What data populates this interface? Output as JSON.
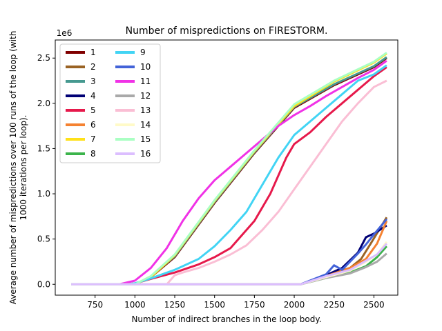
{
  "chart_data": {
    "type": "line",
    "title": "Number of mispredictions on FIRESTORM.",
    "xlabel": "Number of indirect branches in the loop body.",
    "ylabel_line1": "Average number of mispredictions over 100 runs of the loop (with",
    "ylabel_line2": "1000 iterations per loop).",
    "y_multiplier_label": "1e6",
    "xlim": [
      500,
      2650
    ],
    "ylim": [
      -120000,
      2700000
    ],
    "xticks": [
      750,
      1000,
      1250,
      1500,
      1750,
      2000,
      2250,
      2500
    ],
    "yticks": [
      0,
      500000,
      1000000,
      1500000,
      2000000,
      2500000
    ],
    "ytick_labels": [
      "0.0",
      "0.5",
      "1.0",
      "1.5",
      "2.0",
      "2.5"
    ],
    "grid": false,
    "legend_position": "top-left",
    "series": [
      {
        "name": "1",
        "color": "#800000",
        "points": [
          [
            600,
            0
          ],
          [
            1000,
            0
          ],
          [
            1100,
            80000
          ],
          [
            1250,
            300000
          ],
          [
            1500,
            900000
          ],
          [
            1750,
            1450000
          ],
          [
            2000,
            1950000
          ],
          [
            2250,
            2200000
          ],
          [
            2500,
            2400000
          ],
          [
            2580,
            2500000
          ]
        ]
      },
      {
        "name": "2",
        "color": "#9a6324",
        "points": [
          [
            600,
            0
          ],
          [
            2040,
            0
          ],
          [
            2200,
            100000
          ],
          [
            2350,
            180000
          ],
          [
            2420,
            280000
          ],
          [
            2480,
            450000
          ],
          [
            2580,
            740000
          ]
        ]
      },
      {
        "name": "3",
        "color": "#469990",
        "points": [
          [
            600,
            0
          ],
          [
            1000,
            0
          ],
          [
            1100,
            85000
          ],
          [
            1250,
            310000
          ],
          [
            1500,
            910000
          ],
          [
            1750,
            1460000
          ],
          [
            2000,
            1960000
          ],
          [
            2250,
            2210000
          ],
          [
            2500,
            2410000
          ],
          [
            2580,
            2510000
          ]
        ]
      },
      {
        "name": "4",
        "color": "#000075",
        "points": [
          [
            600,
            0
          ],
          [
            2040,
            0
          ],
          [
            2200,
            100000
          ],
          [
            2300,
            180000
          ],
          [
            2400,
            350000
          ],
          [
            2450,
            520000
          ],
          [
            2500,
            560000
          ],
          [
            2580,
            650000
          ]
        ]
      },
      {
        "name": "5",
        "color": "#e6194b",
        "points": [
          [
            600,
            0
          ],
          [
            950,
            0
          ],
          [
            1000,
            10000
          ],
          [
            1100,
            60000
          ],
          [
            1250,
            130000
          ],
          [
            1400,
            220000
          ],
          [
            1500,
            300000
          ],
          [
            1600,
            400000
          ],
          [
            1750,
            700000
          ],
          [
            1850,
            1000000
          ],
          [
            1950,
            1400000
          ],
          [
            2000,
            1550000
          ],
          [
            2100,
            1680000
          ],
          [
            2200,
            1850000
          ],
          [
            2300,
            2000000
          ],
          [
            2400,
            2150000
          ],
          [
            2500,
            2300000
          ],
          [
            2580,
            2400000
          ]
        ]
      },
      {
        "name": "6",
        "color": "#f58231",
        "points": [
          [
            600,
            0
          ],
          [
            2040,
            0
          ],
          [
            2200,
            90000
          ],
          [
            2350,
            180000
          ],
          [
            2450,
            280000
          ],
          [
            2520,
            450000
          ],
          [
            2580,
            700000
          ]
        ]
      },
      {
        "name": "7",
        "color": "#ffe119",
        "points": [
          [
            600,
            0
          ],
          [
            1000,
            0
          ],
          [
            1100,
            80000
          ],
          [
            1250,
            320000
          ],
          [
            1500,
            920000
          ],
          [
            1750,
            1470000
          ],
          [
            2000,
            1970000
          ],
          [
            2250,
            2240000
          ],
          [
            2500,
            2450000
          ],
          [
            2580,
            2550000
          ]
        ]
      },
      {
        "name": "8",
        "color": "#3cb44b",
        "points": [
          [
            600,
            0
          ],
          [
            2040,
            0
          ],
          [
            2200,
            70000
          ],
          [
            2350,
            130000
          ],
          [
            2450,
            200000
          ],
          [
            2520,
            300000
          ],
          [
            2580,
            420000
          ]
        ]
      },
      {
        "name": "9",
        "color": "#42d4f4",
        "points": [
          [
            600,
            0
          ],
          [
            950,
            0
          ],
          [
            1000,
            10000
          ],
          [
            1100,
            65000
          ],
          [
            1250,
            160000
          ],
          [
            1400,
            280000
          ],
          [
            1500,
            420000
          ],
          [
            1600,
            600000
          ],
          [
            1700,
            800000
          ],
          [
            1800,
            1100000
          ],
          [
            1900,
            1400000
          ],
          [
            2000,
            1650000
          ],
          [
            2100,
            1800000
          ],
          [
            2200,
            1950000
          ],
          [
            2300,
            2100000
          ],
          [
            2400,
            2250000
          ],
          [
            2500,
            2320000
          ],
          [
            2580,
            2420000
          ]
        ]
      },
      {
        "name": "10",
        "color": "#4363d8",
        "points": [
          [
            600,
            0
          ],
          [
            2040,
            0
          ],
          [
            2200,
            110000
          ],
          [
            2250,
            210000
          ],
          [
            2300,
            160000
          ],
          [
            2400,
            340000
          ],
          [
            2450,
            440000
          ],
          [
            2500,
            550000
          ],
          [
            2580,
            720000
          ]
        ]
      },
      {
        "name": "11",
        "color": "#f032e6",
        "points": [
          [
            600,
            0
          ],
          [
            900,
            0
          ],
          [
            1000,
            40000
          ],
          [
            1100,
            180000
          ],
          [
            1200,
            400000
          ],
          [
            1300,
            700000
          ],
          [
            1400,
            950000
          ],
          [
            1500,
            1150000
          ],
          [
            1600,
            1300000
          ],
          [
            1700,
            1450000
          ],
          [
            1800,
            1600000
          ],
          [
            1900,
            1750000
          ],
          [
            2000,
            1870000
          ],
          [
            2100,
            1970000
          ],
          [
            2200,
            2080000
          ],
          [
            2300,
            2180000
          ],
          [
            2400,
            2280000
          ],
          [
            2500,
            2370000
          ],
          [
            2580,
            2470000
          ]
        ]
      },
      {
        "name": "12",
        "color": "#a9a9a9",
        "points": [
          [
            600,
            0
          ],
          [
            2040,
            0
          ],
          [
            2200,
            70000
          ],
          [
            2350,
            120000
          ],
          [
            2450,
            190000
          ],
          [
            2520,
            250000
          ],
          [
            2580,
            340000
          ]
        ]
      },
      {
        "name": "13",
        "color": "#fabed4",
        "points": [
          [
            600,
            0
          ],
          [
            1200,
            0
          ],
          [
            1250,
            100000
          ],
          [
            1300,
            130000
          ],
          [
            1400,
            180000
          ],
          [
            1500,
            250000
          ],
          [
            1600,
            330000
          ],
          [
            1700,
            430000
          ],
          [
            1800,
            600000
          ],
          [
            1900,
            800000
          ],
          [
            2000,
            1050000
          ],
          [
            2100,
            1300000
          ],
          [
            2200,
            1550000
          ],
          [
            2300,
            1800000
          ],
          [
            2400,
            2000000
          ],
          [
            2500,
            2180000
          ],
          [
            2580,
            2250000
          ]
        ]
      },
      {
        "name": "14",
        "color": "#fffac8",
        "points": [
          [
            600,
            0
          ],
          [
            2040,
            0
          ],
          [
            2200,
            80000
          ],
          [
            2350,
            150000
          ],
          [
            2450,
            250000
          ],
          [
            2520,
            330000
          ],
          [
            2580,
            470000
          ]
        ]
      },
      {
        "name": "15",
        "color": "#aaffc3",
        "points": [
          [
            600,
            0
          ],
          [
            1000,
            0
          ],
          [
            1100,
            90000
          ],
          [
            1250,
            330000
          ],
          [
            1500,
            930000
          ],
          [
            1750,
            1480000
          ],
          [
            2000,
            1990000
          ],
          [
            2250,
            2250000
          ],
          [
            2500,
            2460000
          ],
          [
            2580,
            2560000
          ]
        ]
      },
      {
        "name": "16",
        "color": "#dcbeff",
        "points": [
          [
            600,
            0
          ],
          [
            2040,
            0
          ],
          [
            2200,
            90000
          ],
          [
            2350,
            160000
          ],
          [
            2450,
            260000
          ],
          [
            2520,
            330000
          ],
          [
            2580,
            450000
          ]
        ]
      }
    ]
  }
}
